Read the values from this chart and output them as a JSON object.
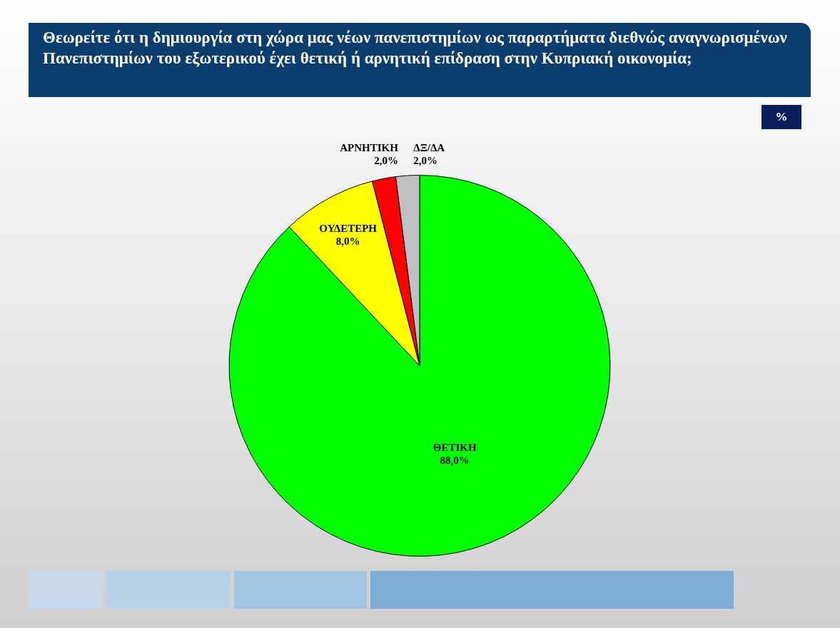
{
  "chart_data": {
    "type": "pie",
    "title": "Θεωρείτε ότι η δημιουργία στη χώρα μας νέων πανεπιστημίων ως παραρτήματα διεθνώς αναγνωρισμένων Πανεπιστημίων του εξωτερικού έχει θετική ή αρνητική επίδραση στην Κυπριακή οικονομία;",
    "annotations": [
      "%"
    ],
    "categories": [
      "ΘΕΤΙΚΗ",
      "ΟΥΔΕΤΕΡΗ",
      "ΑΡΝΗΤΙΚΗ",
      "ΔΞ/ΔΑ"
    ],
    "values": [
      88,
      8,
      2,
      2
    ],
    "value_labels": [
      "88,0%",
      "8,0%",
      "2,0%",
      "2,0%"
    ],
    "colors": [
      "#00ff00",
      "#ffff00",
      "#ff0000",
      "#c0c0c0"
    ],
    "legend": false
  }
}
